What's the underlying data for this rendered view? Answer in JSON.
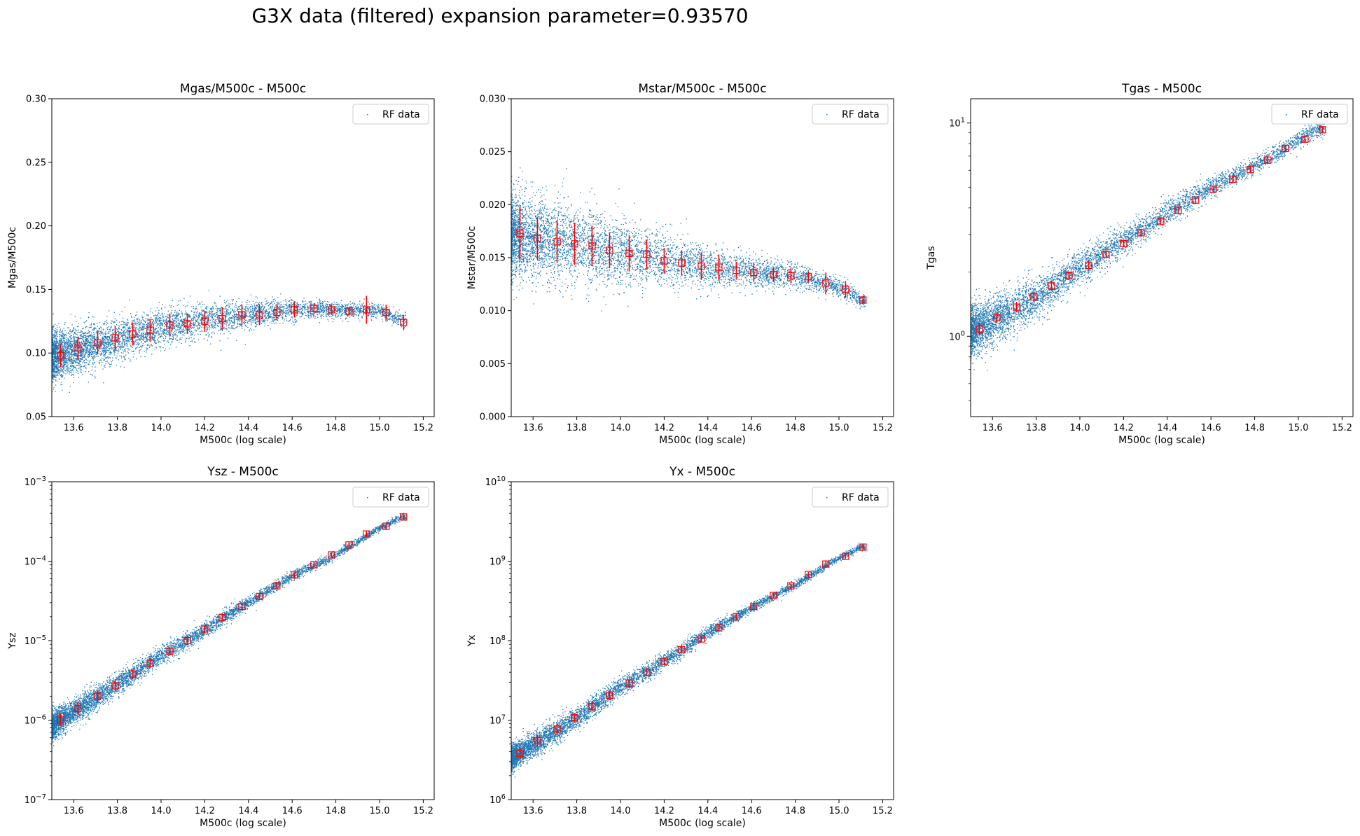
{
  "suptitle": "G3X data (filtered) expansion parameter=0.93570",
  "colors": {
    "scatter": "#1f77b4",
    "errorbar": "#ff0000",
    "axes": "#000000"
  },
  "chart_data": [
    {
      "type": "scatter",
      "title": "Mgas/M500c - M500c",
      "xlabel": "M500c (log scale)",
      "ylabel": "Mgas/M500c",
      "xlim": [
        13.5,
        15.25
      ],
      "ylim": [
        0.05,
        0.3
      ],
      "yscale": "linear",
      "xticks": [
        "13.6",
        "13.8",
        "14.0",
        "14.2",
        "14.4",
        "14.6",
        "14.8",
        "15.0",
        "15.2"
      ],
      "yticks": [
        "0.05",
        "0.10",
        "0.15",
        "0.20",
        "0.25",
        "0.30"
      ],
      "legend": {
        "label": "RF data",
        "loc": "upper right"
      },
      "series": [
        {
          "name": "RF data",
          "kind": "scatter",
          "x": [
            13.5,
            13.8,
            14.0,
            14.2,
            14.4,
            14.6,
            14.8,
            15.0,
            15.1
          ],
          "y": [
            0.097,
            0.111,
            0.12,
            0.126,
            0.13,
            0.134,
            0.134,
            0.133,
            0.126
          ],
          "spread": [
            0.014,
            0.011,
            0.01,
            0.009,
            0.008,
            0.006,
            0.004,
            0.004,
            0.004
          ]
        },
        {
          "kind": "binned_errorbar",
          "x": [
            13.54,
            13.62,
            13.71,
            13.79,
            13.87,
            13.95,
            14.04,
            14.12,
            14.2,
            14.28,
            14.37,
            14.45,
            14.53,
            14.61,
            14.7,
            14.78,
            14.86,
            14.94,
            15.03,
            15.11
          ],
          "y": [
            0.098,
            0.104,
            0.108,
            0.112,
            0.115,
            0.118,
            0.122,
            0.123,
            0.125,
            0.127,
            0.13,
            0.13,
            0.132,
            0.134,
            0.135,
            0.134,
            0.133,
            0.134,
            0.132,
            0.124
          ],
          "err": [
            0.009,
            0.009,
            0.009,
            0.009,
            0.009,
            0.009,
            0.009,
            0.008,
            0.008,
            0.009,
            0.008,
            0.008,
            0.006,
            0.006,
            0.004,
            0.004,
            0.003,
            0.011,
            0.006,
            0.006
          ]
        }
      ]
    },
    {
      "type": "scatter",
      "title": "Mstar/M500c - M500c",
      "xlabel": "M500c (log scale)",
      "ylabel": "Mstar/M500c",
      "xlim": [
        13.5,
        15.25
      ],
      "ylim": [
        0.0,
        0.03
      ],
      "yscale": "linear",
      "xticks": [
        "13.6",
        "13.8",
        "14.0",
        "14.2",
        "14.4",
        "14.6",
        "14.8",
        "15.0",
        "15.2"
      ],
      "yticks": [
        "0.000",
        "0.005",
        "0.010",
        "0.015",
        "0.020",
        "0.025",
        "0.030"
      ],
      "legend": {
        "label": "RF data",
        "loc": "upper right"
      },
      "series": [
        {
          "name": "RF data",
          "kind": "scatter",
          "x": [
            13.5,
            13.8,
            14.0,
            14.2,
            14.4,
            14.6,
            14.8,
            15.0,
            15.1
          ],
          "y": [
            0.0172,
            0.0163,
            0.0155,
            0.0148,
            0.0141,
            0.0136,
            0.0133,
            0.0122,
            0.011
          ],
          "spread": [
            0.0028,
            0.0026,
            0.0022,
            0.0018,
            0.0014,
            0.001,
            0.0008,
            0.0007,
            0.0005
          ]
        },
        {
          "kind": "binned_errorbar",
          "x": [
            13.54,
            13.62,
            13.71,
            13.79,
            13.87,
            13.95,
            14.04,
            14.12,
            14.2,
            14.28,
            14.37,
            14.45,
            14.53,
            14.61,
            14.7,
            14.78,
            14.86,
            14.94,
            15.03,
            15.11
          ],
          "y": [
            0.0173,
            0.0168,
            0.0165,
            0.0163,
            0.0161,
            0.0157,
            0.0154,
            0.0153,
            0.0147,
            0.0145,
            0.0142,
            0.0141,
            0.0138,
            0.0136,
            0.0134,
            0.0133,
            0.0132,
            0.0126,
            0.012,
            0.011
          ],
          "err": [
            0.0025,
            0.002,
            0.002,
            0.002,
            0.0019,
            0.0017,
            0.0017,
            0.0014,
            0.0012,
            0.0012,
            0.0013,
            0.0012,
            0.0008,
            0.0009,
            0.0007,
            0.0007,
            0.0005,
            0.001,
            0.0008,
            0.0004
          ]
        }
      ]
    },
    {
      "type": "scatter",
      "title": "Tgas - M500c",
      "xlabel": "M500c (log scale)",
      "ylabel": "Tgas",
      "xlim": [
        13.5,
        15.25
      ],
      "ylim": [
        0.42,
        13.0
      ],
      "yscale": "log",
      "xticks": [
        "13.6",
        "13.8",
        "14.0",
        "14.2",
        "14.4",
        "14.6",
        "14.8",
        "15.0",
        "15.2"
      ],
      "yticks_log": [
        {
          "value": 1,
          "base": "10",
          "exp": "0"
        },
        {
          "value": 10,
          "base": "10",
          "exp": "1"
        }
      ],
      "legend": {
        "label": "RF data",
        "loc": "upper right"
      },
      "series": [
        {
          "name": "RF data",
          "kind": "scatter",
          "x": [
            13.5,
            13.8,
            14.0,
            14.2,
            14.4,
            14.6,
            14.8,
            15.0,
            15.1
          ],
          "y": [
            1.05,
            1.5,
            2.1,
            2.8,
            3.8,
            5.0,
            6.3,
            8.3,
            9.5
          ],
          "spread_dex": [
            0.06,
            0.05,
            0.04,
            0.035,
            0.03,
            0.025,
            0.02,
            0.02,
            0.02
          ]
        },
        {
          "kind": "binned_errorbar",
          "x": [
            13.54,
            13.62,
            13.71,
            13.79,
            13.87,
            13.95,
            14.04,
            14.12,
            14.2,
            14.28,
            14.37,
            14.45,
            14.53,
            14.61,
            14.7,
            14.78,
            14.86,
            14.94,
            15.03,
            15.11
          ],
          "y": [
            1.08,
            1.22,
            1.37,
            1.53,
            1.72,
            1.92,
            2.15,
            2.42,
            2.72,
            3.06,
            3.45,
            3.9,
            4.35,
            4.9,
            5.45,
            6.05,
            6.7,
            7.6,
            8.4,
            9.3
          ],
          "err": [
            0.07,
            0.07,
            0.08,
            0.08,
            0.09,
            0.09,
            0.1,
            0.1,
            0.11,
            0.12,
            0.13,
            0.14,
            0.15,
            0.15,
            0.16,
            0.2,
            0.3,
            0.3,
            0.3,
            0.3
          ]
        }
      ]
    },
    {
      "type": "scatter",
      "title": "Ysz - M500c",
      "xlabel": "M500c (log scale)",
      "ylabel": "Ysz",
      "xlim": [
        13.5,
        15.25
      ],
      "ylim": [
        1e-07,
        0.001
      ],
      "yscale": "log",
      "xticks": [
        "13.6",
        "13.8",
        "14.0",
        "14.2",
        "14.4",
        "14.6",
        "14.8",
        "15.0",
        "15.2"
      ],
      "yticks_log": [
        {
          "value": 1e-07,
          "base": "10",
          "exp": "−7"
        },
        {
          "value": 1e-06,
          "base": "10",
          "exp": "−6"
        },
        {
          "value": 1e-05,
          "base": "10",
          "exp": "−5"
        },
        {
          "value": 0.0001,
          "base": "10",
          "exp": "−4"
        },
        {
          "value": 0.001,
          "base": "10",
          "exp": "−3"
        }
      ],
      "legend": {
        "label": "RF data",
        "loc": "upper right"
      },
      "series": [
        {
          "name": "RF data",
          "kind": "scatter",
          "x": [
            13.5,
            13.8,
            14.0,
            14.2,
            14.4,
            14.6,
            14.8,
            15.0,
            15.1
          ],
          "y": [
            8.5e-07,
            2.8e-06,
            6.5e-06,
            1.35e-05,
            3e-05,
            6.5e-05,
            0.00012,
            0.00026,
            0.00036
          ],
          "spread_dex": [
            0.09,
            0.07,
            0.06,
            0.05,
            0.04,
            0.03,
            0.025,
            0.02,
            0.02
          ]
        },
        {
          "kind": "binned_errorbar",
          "x": [
            13.54,
            13.62,
            13.71,
            13.79,
            13.87,
            13.95,
            14.04,
            14.12,
            14.2,
            14.28,
            14.37,
            14.45,
            14.53,
            14.61,
            14.7,
            14.78,
            14.86,
            14.94,
            15.03,
            15.11
          ],
          "y": [
            1e-06,
            1.4e-06,
            2e-06,
            2.7e-06,
            3.8e-06,
            5.2e-06,
            7.3e-06,
            1e-05,
            1.4e-05,
            1.95e-05,
            2.7e-05,
            3.6e-05,
            4.9e-05,
            6.7e-05,
            9e-05,
            0.00012,
            0.00016,
            0.00022,
            0.000275,
            0.00036
          ],
          "err_dex": [
            0.08,
            0.08,
            0.07,
            0.07,
            0.06,
            0.06,
            0.05,
            0.05,
            0.05,
            0.05,
            0.04,
            0.04,
            0.04,
            0.03,
            0.03,
            0.03,
            0.03,
            0.04,
            0.03,
            0.03
          ]
        }
      ]
    },
    {
      "type": "scatter",
      "title": "Yx - M500c",
      "xlabel": "M500c (log scale)",
      "ylabel": "Yx",
      "xlim": [
        13.5,
        15.25
      ],
      "ylim": [
        1000000.0,
        10000000000.0
      ],
      "yscale": "log",
      "xticks": [
        "13.6",
        "13.8",
        "14.0",
        "14.2",
        "14.4",
        "14.6",
        "14.8",
        "15.0",
        "15.2"
      ],
      "yticks_log": [
        {
          "value": 1000000.0,
          "base": "10",
          "exp": "6"
        },
        {
          "value": 10000000.0,
          "base": "10",
          "exp": "7"
        },
        {
          "value": 100000000.0,
          "base": "10",
          "exp": "8"
        },
        {
          "value": 1000000000.0,
          "base": "10",
          "exp": "9"
        },
        {
          "value": 10000000000.0,
          "base": "10",
          "exp": "10"
        }
      ],
      "legend": {
        "label": "RF data",
        "loc": "upper right"
      },
      "series": [
        {
          "name": "RF data",
          "kind": "scatter",
          "x": [
            13.5,
            13.8,
            14.0,
            14.2,
            14.4,
            14.6,
            14.8,
            15.0,
            15.1
          ],
          "y": [
            3300000.0,
            10500000.0,
            26000000.0,
            55000000.0,
            125000000.0,
            260000000.0,
            500000000.0,
            1100000000.0,
            1500000000.0
          ],
          "spread_dex": [
            0.08,
            0.07,
            0.06,
            0.05,
            0.04,
            0.03,
            0.025,
            0.02,
            0.02
          ]
        },
        {
          "kind": "binned_errorbar",
          "x": [
            13.54,
            13.62,
            13.71,
            13.79,
            13.87,
            13.95,
            14.04,
            14.12,
            14.2,
            14.28,
            14.37,
            14.45,
            14.53,
            14.61,
            14.7,
            14.78,
            14.86,
            14.94,
            15.03,
            15.11
          ],
          "y": [
            3800000.0,
            5500000.0,
            7700000.0,
            10700000.0,
            14800000.0,
            20500000.0,
            28500000.0,
            40000000.0,
            55000000.0,
            77000000.0,
            105000000.0,
            145000000.0,
            200000000.0,
            270000000.0,
            370000000.0,
            490000000.0,
            680000000.0,
            920000000.0,
            1150000000.0,
            1500000000.0
          ],
          "err_dex": [
            0.08,
            0.07,
            0.07,
            0.06,
            0.06,
            0.06,
            0.05,
            0.05,
            0.05,
            0.05,
            0.04,
            0.04,
            0.04,
            0.03,
            0.03,
            0.03,
            0.03,
            0.04,
            0.03,
            0.03
          ]
        }
      ]
    }
  ]
}
